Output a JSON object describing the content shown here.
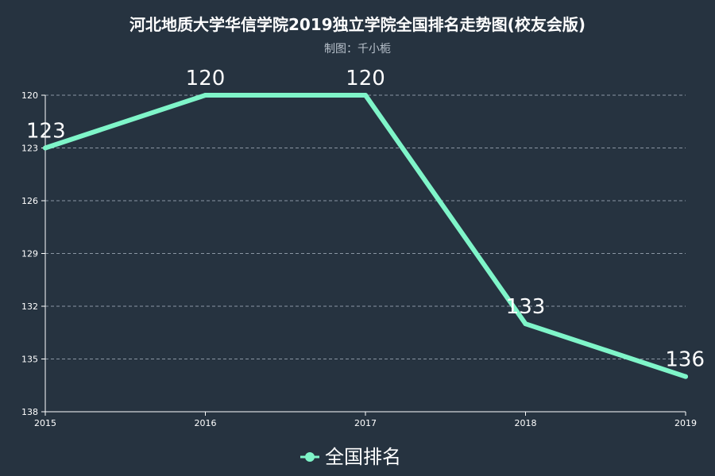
{
  "chart_data": {
    "type": "line",
    "title": "河北地质大学华信学院2019独立学院全国排名走势图(校友会版)",
    "subtitle": "制图：千小栀",
    "categories": [
      "2015",
      "2016",
      "2017",
      "2018",
      "2019"
    ],
    "series": [
      {
        "name": "全国排名",
        "values": [
          123,
          120,
          120,
          133,
          136
        ],
        "color": "#7ff5c9"
      }
    ],
    "y_axis": {
      "inverse": true,
      "min": 120,
      "max": 138,
      "ticks": [
        120,
        123,
        126,
        129,
        132,
        135,
        138
      ]
    },
    "grid": true,
    "legend_position": "bottom-center",
    "background": "#263340"
  }
}
